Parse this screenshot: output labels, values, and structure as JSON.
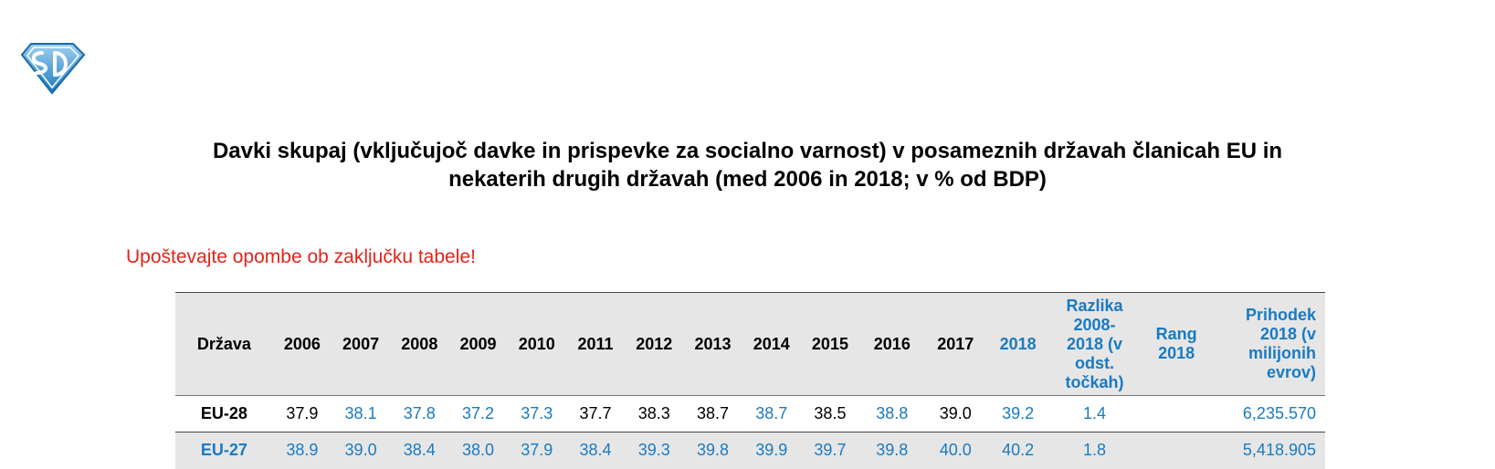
{
  "logo": {
    "icon": "sd-shield-logo-icon",
    "color": "#1a7ac2"
  },
  "title_line1": "Davki skupaj (vključujoč davke in prispevke za socialno varnost) v posameznih državah članicah EU in",
  "title_line2": "nekaterih drugih državah (med 2006 in 2018; v % od BDP)",
  "note": "Upoštevajte opombe ob zaključku tabele!",
  "colors": {
    "blue": "#1a7ac2",
    "red": "#e2231a",
    "header_bg": "#e6e6e6"
  },
  "table": {
    "headers": {
      "country": "Država",
      "y2006": "2006",
      "y2007": "2007",
      "y2008": "2008",
      "y2009": "2009",
      "y2010": "2010",
      "y2011": "2011",
      "y2012": "2012",
      "y2013": "2013",
      "y2014": "2014",
      "y2015": "2015",
      "y2016": "2016",
      "y2017": "2017",
      "y2018": "2018",
      "diff_l1": "Razlika",
      "diff_l2": "2008-",
      "diff_l3": "2018 (v",
      "diff_l4": "odst.",
      "diff_l5": "točkah)",
      "rank_l1": "Rang",
      "rank_l2": "2018",
      "rev_l1": "Prihodek",
      "rev_l2": "2018 (v",
      "rev_l3": "milijonih",
      "rev_l4": "evrov)"
    },
    "rows": [
      {
        "country": "EU-28",
        "v2006": "37.9",
        "v2007": "38.1",
        "v2008": "37.8",
        "v2009": "37.2",
        "v2010": "37.3",
        "v2011": "37.7",
        "v2012": "38.3",
        "v2013": "38.7",
        "v2014": "38.7",
        "v2015": "38.5",
        "v2016": "38.8",
        "v2017": "39.0",
        "v2018": "39.2",
        "diff": "1.4",
        "rank": "",
        "revenue": "6,235.570"
      },
      {
        "country": "EU-27",
        "v2006": "38.9",
        "v2007": "39.0",
        "v2008": "38.4",
        "v2009": "38.0",
        "v2010": "37.9",
        "v2011": "38.4",
        "v2012": "39.3",
        "v2013": "39.8",
        "v2014": "39.9",
        "v2015": "39.7",
        "v2016": "39.8",
        "v2017": "40.0",
        "v2018": "40.2",
        "diff": "1.8",
        "rank": "",
        "revenue": "5,418.905"
      }
    ]
  }
}
